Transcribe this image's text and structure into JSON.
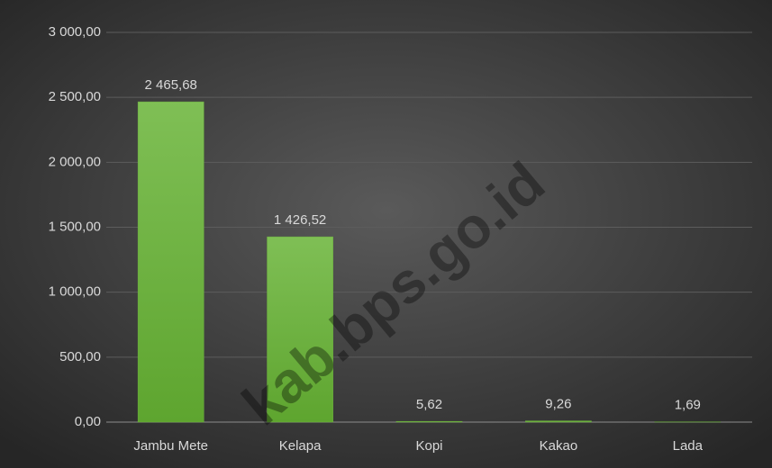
{
  "chart_data": {
    "type": "bar",
    "categories": [
      "Jambu Mete",
      "Kelapa",
      "Kopi",
      "Kakao",
      "Lada"
    ],
    "values": [
      2465.68,
      1426.52,
      5.62,
      9.26,
      1.69
    ],
    "value_labels": [
      "2 465,68",
      "1 426,52",
      "5,62",
      "9,26",
      "1,69"
    ],
    "color": "#6eb33f",
    "ylim": [
      0,
      3000
    ],
    "yticks": [
      {
        "value": 0,
        "label": "0,00"
      },
      {
        "value": 500,
        "label": "500,00"
      },
      {
        "value": 1000,
        "label": "1 000,00"
      },
      {
        "value": 1500,
        "label": "1 500,00"
      },
      {
        "value": 2000,
        "label": "2 000,00"
      },
      {
        "value": 2500,
        "label": "2 500,00"
      },
      {
        "value": 3000,
        "label": "3 000,00"
      }
    ],
    "grid": true,
    "watermark": "kab.bps.go.id"
  }
}
